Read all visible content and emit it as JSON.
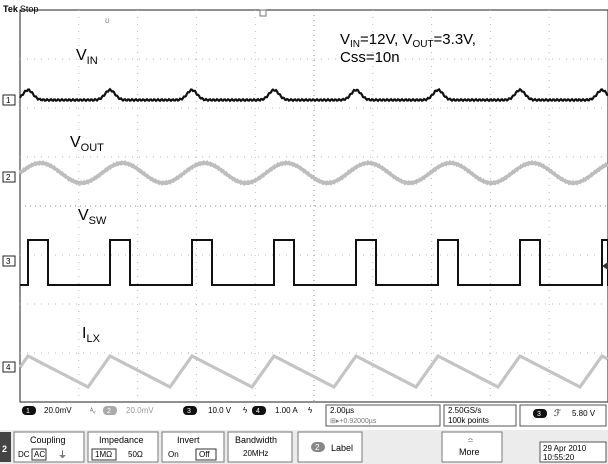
{
  "header": {
    "brand": "Tek",
    "status": "Stop"
  },
  "annotations": {
    "vin": {
      "main": "V",
      "sub": "IN"
    },
    "vout": {
      "main": "V",
      "sub": "OUT"
    },
    "vsw": {
      "main": "V",
      "sub": "SW"
    },
    "ilx": {
      "main": "I",
      "sub": "LX"
    },
    "conditions_line1": {
      "a": "V",
      "a_sub": "IN",
      "b": "=12V, V",
      "b_sub": "OUT",
      "c": "=3.3V,"
    },
    "conditions_line2": "Css=10n"
  },
  "channel_markers": [
    "1",
    "2",
    "3",
    "4"
  ],
  "status_bar": {
    "ch1": {
      "num": "1",
      "scale": "20.0mV"
    },
    "ch2": {
      "num": "2",
      "scale": "20.0mV"
    },
    "ch3": {
      "num": "3",
      "scale": "10.0 V"
    },
    "ch4": {
      "num": "4",
      "scale": "1.00 A"
    },
    "timebase": "2.00µs",
    "delay": "+0.92000µs",
    "sample_rate": "2.50GS/s",
    "record_length": "100k points",
    "trigger_ch": "3",
    "trigger_level": "5.80 V"
  },
  "menu": {
    "channel": "2",
    "coupling": {
      "title": "Coupling",
      "options": [
        "DC",
        "AC"
      ]
    },
    "impedance": {
      "title": "Impedance",
      "options": [
        "1MΩ",
        "50Ω"
      ]
    },
    "invert": {
      "title": "Invert",
      "options": [
        "On",
        "Off"
      ]
    },
    "bandwidth": {
      "title": "Bandwidth",
      "value": "20MHz"
    },
    "label": {
      "num": "2",
      "text": "Label"
    },
    "more": "More"
  },
  "datetime": {
    "date": "29 Apr 2010",
    "time": "10:55:20"
  }
}
